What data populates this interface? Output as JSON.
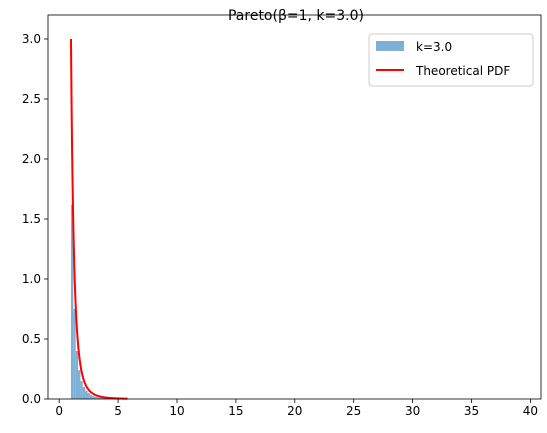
{
  "chart_data": {
    "type": "histogram",
    "title": "Pareto(β=1, k=3.0)",
    "xlabel": "",
    "ylabel": "",
    "xlim": [
      -0.95,
      40.9
    ],
    "ylim": [
      0,
      3.2
    ],
    "xticks": [
      0,
      5,
      10,
      15,
      20,
      25,
      30,
      35,
      40
    ],
    "yticks": [
      0.0,
      0.5,
      1.0,
      1.5,
      2.0,
      2.5,
      3.0
    ],
    "xtick_labels": [
      "0",
      "5",
      "10",
      "15",
      "20",
      "25",
      "30",
      "35",
      "40"
    ],
    "ytick_labels": [
      "0.0",
      "0.5",
      "1.0",
      "1.5",
      "2.0",
      "2.5",
      "3.0"
    ],
    "grid": false,
    "legend_position": "top-right",
    "series": [
      {
        "name": "k=3.0",
        "kind": "histogram",
        "bin_edges": [
          1.0,
          1.2,
          1.4,
          1.6,
          1.8,
          2.0,
          2.2,
          2.4,
          2.6,
          2.8,
          3.0,
          3.2,
          3.4,
          3.6,
          3.8,
          4.0,
          4.2,
          4.4,
          4.6,
          4.8,
          5.0,
          5.2,
          5.4,
          5.6,
          5.8
        ],
        "values": [
          1.62,
          0.75,
          0.4,
          0.24,
          0.15,
          0.1,
          0.07,
          0.05,
          0.035,
          0.025,
          0.019,
          0.014,
          0.011,
          0.009,
          0.007,
          0.006,
          0.005,
          0.004,
          0.003,
          0.003,
          0.002,
          0.002,
          0.002,
          0.001
        ],
        "color": "#7EB0D5"
      },
      {
        "name": "Theoretical PDF",
        "kind": "line",
        "formula": "3 / x^4",
        "x_range": [
          1.0,
          5.8
        ],
        "color": "#FF0000"
      }
    ]
  }
}
